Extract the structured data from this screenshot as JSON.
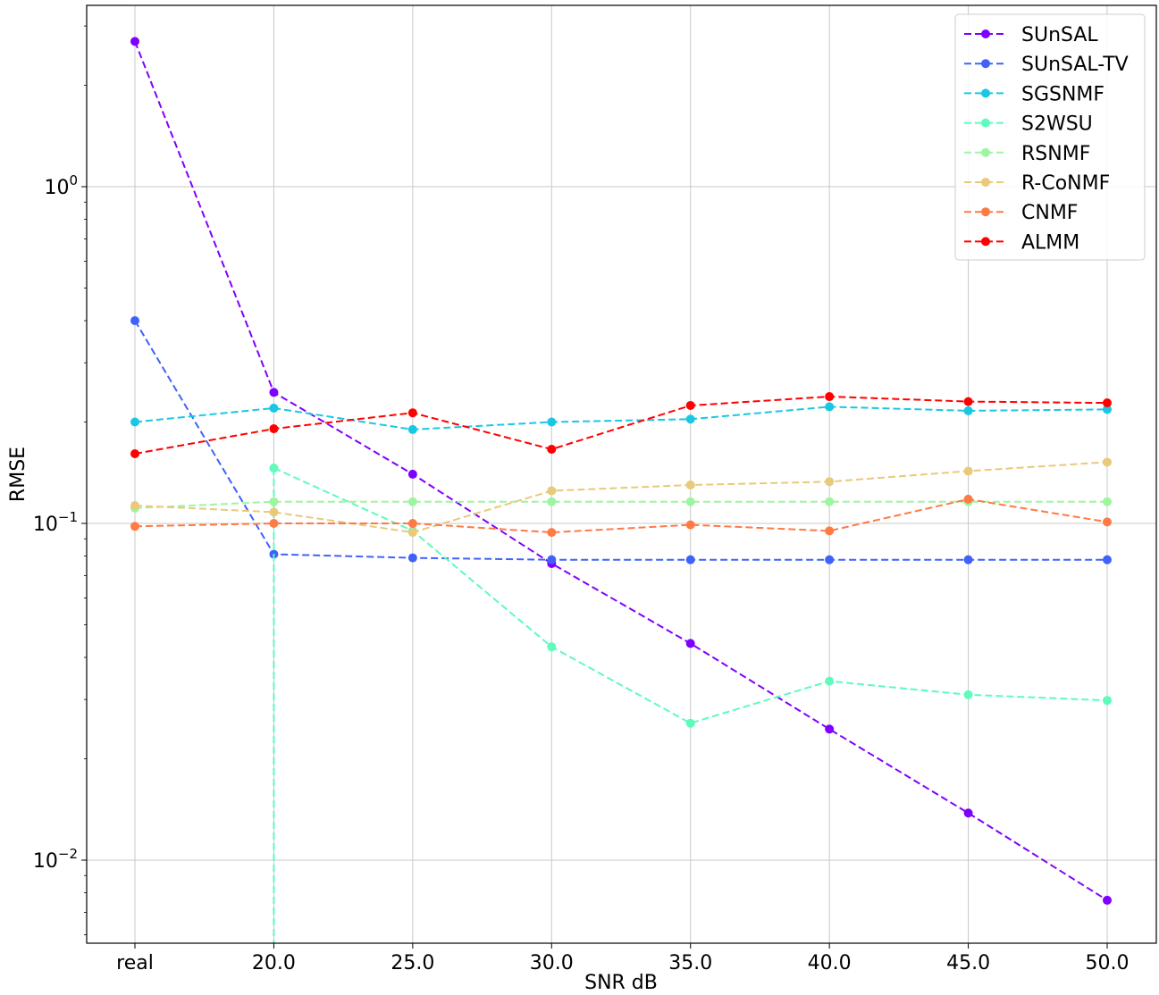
{
  "chart_data": {
    "type": "line",
    "title": "",
    "xlabel": "SNR dB",
    "ylabel": "RMSE",
    "yscale": "log",
    "ylim": [
      0.0055,
      3.6
    ],
    "grid": true,
    "legend_position": "top-right",
    "categories": [
      "real",
      "20.0",
      "25.0",
      "30.0",
      "35.0",
      "40.0",
      "45.0",
      "50.0"
    ],
    "y_ticks": [
      {
        "value": 1,
        "base": "10",
        "exp": "0"
      },
      {
        "value": 0.1,
        "base": "10",
        "exp": "−1"
      },
      {
        "value": 0.01,
        "base": "10",
        "exp": "−2"
      }
    ],
    "series": [
      {
        "name": "SUnSAL",
        "color": "#8000ff",
        "values": [
          2.7,
          0.245,
          0.14,
          0.076,
          0.044,
          0.0245,
          0.0138,
          0.0076
        ]
      },
      {
        "name": "SUnSAL-TV",
        "color": "#4062fa",
        "values": [
          0.4,
          0.081,
          0.079,
          0.078,
          0.078,
          0.078,
          0.078,
          0.078
        ]
      },
      {
        "name": "SGSNMF",
        "color": "#1ac7e3",
        "values": [
          0.2,
          0.22,
          0.19,
          0.2,
          0.204,
          0.222,
          0.216,
          0.218
        ]
      },
      {
        "name": "S2WSU",
        "color": "#5efbbc",
        "values": [
          null,
          0.146,
          0.095,
          0.043,
          0.0255,
          0.034,
          0.031,
          0.0298
        ]
      },
      {
        "name": "RSNMF",
        "color": "#9ef59f",
        "values": [
          0.111,
          0.116,
          0.116,
          0.116,
          0.116,
          0.116,
          0.116,
          0.116
        ]
      },
      {
        "name": "R-CoNMF",
        "color": "#e9c97a",
        "values": [
          0.113,
          0.108,
          0.094,
          0.125,
          0.13,
          0.133,
          0.143,
          0.152
        ]
      },
      {
        "name": "CNMF",
        "color": "#ff7a45",
        "values": [
          0.098,
          0.1,
          0.1,
          0.094,
          0.099,
          0.095,
          0.118,
          0.101
        ]
      },
      {
        "name": "ALMM",
        "color": "#ff0000",
        "values": [
          0.161,
          0.191,
          0.213,
          0.166,
          0.224,
          0.238,
          0.23,
          0.228
        ]
      }
    ]
  }
}
